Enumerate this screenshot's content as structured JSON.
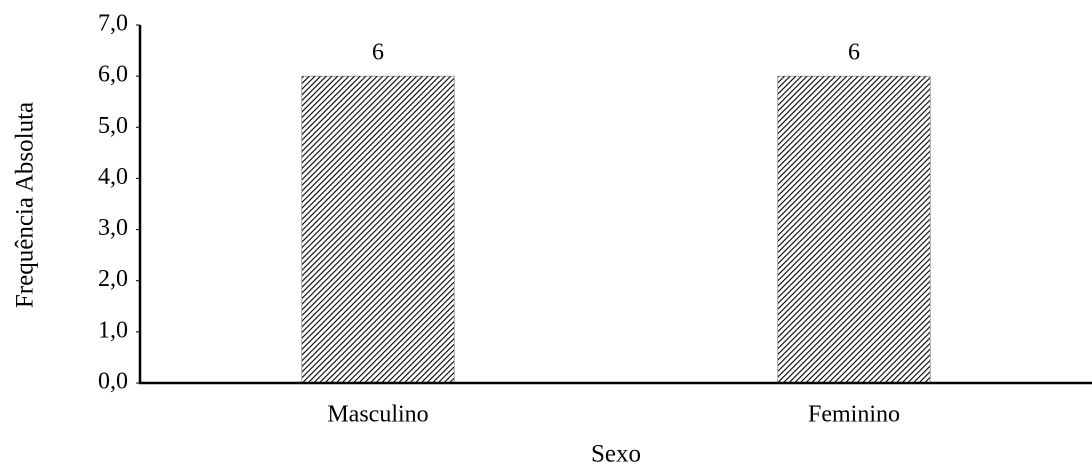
{
  "chart_data": {
    "type": "bar",
    "x_label": "Sexo",
    "y_label": "Frequência Absoluta",
    "categories": [
      "Masculino",
      "Feminino"
    ],
    "values": [
      6,
      6
    ],
    "color": "#000000",
    "hatch": true,
    "ylim": [
      0,
      7
    ],
    "yticks": [
      {
        "value": 0,
        "label": "0,0"
      },
      {
        "value": 1,
        "label": "1,0"
      },
      {
        "value": 2,
        "label": "2,0"
      },
      {
        "value": 3,
        "label": "3,0"
      },
      {
        "value": 4,
        "label": "4,0"
      },
      {
        "value": 5,
        "label": "5,0"
      },
      {
        "value": 6,
        "label": "6,0"
      },
      {
        "value": 7,
        "label": "7,0"
      }
    ],
    "grid": false
  }
}
